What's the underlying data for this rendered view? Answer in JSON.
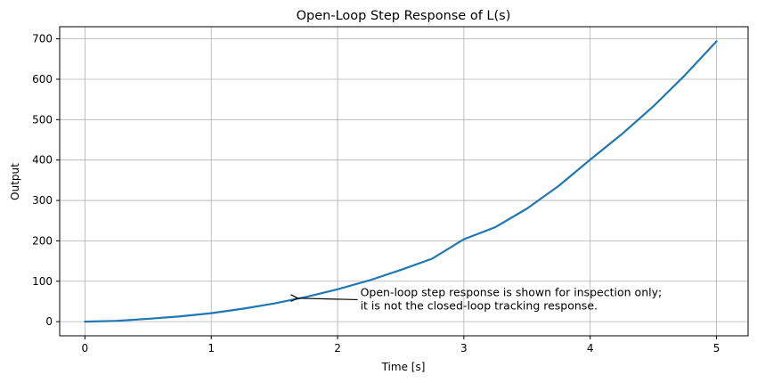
{
  "chart_data": {
    "type": "line",
    "title": "Open-Loop Step Response of L(s)",
    "xlabel": "Time [s]",
    "ylabel": "Output",
    "xlim": [
      -0.2,
      5.25
    ],
    "ylim": [
      -35,
      730
    ],
    "xticks": [
      0,
      1,
      2,
      3,
      4,
      5
    ],
    "yticks": [
      0,
      100,
      200,
      300,
      400,
      500,
      600,
      700
    ],
    "grid": true,
    "series": [
      {
        "color": "#1f77b4",
        "x": [
          0,
          0.25,
          0.5,
          0.75,
          1.0,
          1.25,
          1.5,
          1.67,
          1.75,
          2.0,
          2.25,
          2.5,
          2.75,
          3.0,
          3.25,
          3.5,
          3.75,
          4.0,
          4.25,
          4.5,
          4.75,
          5.0
        ],
        "y": [
          0,
          2,
          7,
          13,
          21,
          32,
          45,
          56,
          61,
          80,
          102,
          128,
          156,
          204,
          234,
          280,
          336,
          401,
          464,
          533,
          610,
          694
        ]
      }
    ],
    "annotations": [
      {
        "lines": [
          "Open-loop step response is shown for inspection only;",
          "it is not the closed-loop tracking response."
        ],
        "text_x": 2.18,
        "text_y": 50,
        "arrow_to": [
          1.67,
          58
        ]
      }
    ]
  }
}
